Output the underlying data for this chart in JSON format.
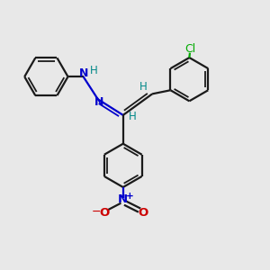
{
  "bg_color": "#e8e8e8",
  "bond_color": "#1a1a1a",
  "N_color": "#0000cc",
  "O_color": "#cc0000",
  "Cl_color": "#00aa00",
  "H_color": "#008888",
  "figsize": [
    3.0,
    3.0
  ],
  "dpi": 100,
  "xlim": [
    0,
    10
  ],
  "ylim": [
    0,
    10
  ]
}
